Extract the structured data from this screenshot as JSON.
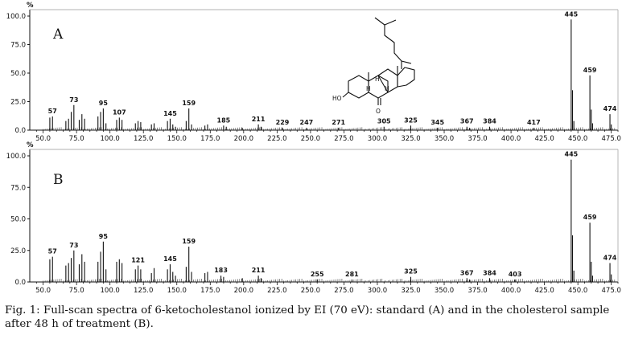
{
  "chart_data": [
    {
      "type": "bar",
      "panel": "A",
      "y_unit": "%",
      "x_ticks": [
        "50.0",
        "75.0",
        "100.0",
        "125.0",
        "150.0",
        "175.0",
        "200.0",
        "225.0",
        "250.0",
        "275.0",
        "300.0",
        "325.0",
        "350.0",
        "375.0",
        "400.0",
        "425.0",
        "450.0",
        "475.0"
      ],
      "y_ticks": [
        "0.0",
        "25.0",
        "50.0",
        "75.0",
        "100.0"
      ],
      "xlim": [
        40,
        480
      ],
      "ylim": [
        0,
        100
      ],
      "peak_labels": [
        "57",
        "73",
        "95",
        "107",
        "145",
        "159",
        "185",
        "211",
        "229",
        "247",
        "271",
        "305",
        "325",
        "345",
        "367",
        "384",
        "417",
        "445",
        "459",
        "474"
      ],
      "peaks": [
        [
          55,
          11
        ],
        [
          57,
          12
        ],
        [
          67,
          8
        ],
        [
          69,
          10
        ],
        [
          71,
          16
        ],
        [
          73,
          22
        ],
        [
          77,
          9
        ],
        [
          79,
          14
        ],
        [
          81,
          10
        ],
        [
          91,
          12
        ],
        [
          93,
          16
        ],
        [
          95,
          19
        ],
        [
          97,
          6
        ],
        [
          105,
          9
        ],
        [
          107,
          11
        ],
        [
          109,
          9
        ],
        [
          119,
          6
        ],
        [
          121,
          8
        ],
        [
          123,
          7
        ],
        [
          131,
          5
        ],
        [
          133,
          6
        ],
        [
          143,
          8
        ],
        [
          145,
          10
        ],
        [
          147,
          5
        ],
        [
          149,
          3
        ],
        [
          157,
          8
        ],
        [
          159,
          19
        ],
        [
          161,
          5
        ],
        [
          171,
          4
        ],
        [
          173,
          5
        ],
        [
          185,
          4
        ],
        [
          187,
          3
        ],
        [
          199,
          2
        ],
        [
          211,
          5
        ],
        [
          213,
          3
        ],
        [
          229,
          2
        ],
        [
          247,
          2
        ],
        [
          271,
          2
        ],
        [
          305,
          3
        ],
        [
          325,
          4
        ],
        [
          345,
          2
        ],
        [
          367,
          3
        ],
        [
          369,
          2
        ],
        [
          384,
          3
        ],
        [
          417,
          2
        ],
        [
          445,
          97
        ],
        [
          446,
          35
        ],
        [
          447,
          8
        ],
        [
          459,
          48
        ],
        [
          460,
          18
        ],
        [
          461,
          6
        ],
        [
          474,
          14
        ],
        [
          475,
          5
        ]
      ]
    },
    {
      "type": "bar",
      "panel": "B",
      "y_unit": "%",
      "x_ticks": [
        "50.0",
        "75.0",
        "100.0",
        "125.0",
        "150.0",
        "175.0",
        "200.0",
        "225.0",
        "250.0",
        "275.0",
        "300.0",
        "325.0",
        "350.0",
        "375.0",
        "400.0",
        "425.0",
        "450.0",
        "475.0"
      ],
      "y_ticks": [
        "0.0",
        "25.0",
        "50.0",
        "75.0",
        "100.0"
      ],
      "xlim": [
        40,
        480
      ],
      "ylim": [
        0,
        100
      ],
      "peak_labels": [
        "57",
        "73",
        "95",
        "121",
        "145",
        "159",
        "183",
        "211",
        "255",
        "281",
        "325",
        "367",
        "384",
        "403",
        "445",
        "459",
        "474"
      ],
      "peaks": [
        [
          55,
          18
        ],
        [
          57,
          20
        ],
        [
          67,
          13
        ],
        [
          69,
          15
        ],
        [
          71,
          19
        ],
        [
          73,
          25
        ],
        [
          77,
          14
        ],
        [
          79,
          22
        ],
        [
          81,
          16
        ],
        [
          91,
          16
        ],
        [
          93,
          24
        ],
        [
          95,
          32
        ],
        [
          97,
          10
        ],
        [
          105,
          16
        ],
        [
          107,
          18
        ],
        [
          109,
          15
        ],
        [
          119,
          10
        ],
        [
          121,
          13
        ],
        [
          123,
          10
        ],
        [
          131,
          7
        ],
        [
          133,
          11
        ],
        [
          143,
          10
        ],
        [
          145,
          14
        ],
        [
          147,
          8
        ],
        [
          149,
          5
        ],
        [
          157,
          12
        ],
        [
          159,
          28
        ],
        [
          161,
          8
        ],
        [
          171,
          7
        ],
        [
          173,
          8
        ],
        [
          183,
          5
        ],
        [
          185,
          4
        ],
        [
          199,
          3
        ],
        [
          211,
          5
        ],
        [
          213,
          3
        ],
        [
          255,
          2
        ],
        [
          281,
          2
        ],
        [
          325,
          4
        ],
        [
          367,
          3
        ],
        [
          369,
          2
        ],
        [
          384,
          3
        ],
        [
          403,
          2
        ],
        [
          445,
          97
        ],
        [
          446,
          37
        ],
        [
          447,
          9
        ],
        [
          459,
          47
        ],
        [
          460,
          16
        ],
        [
          461,
          5
        ],
        [
          474,
          15
        ],
        [
          475,
          6
        ]
      ]
    }
  ],
  "structure": {
    "oh_label": "HO",
    "ketone_label": "O",
    "h_labels": [
      "H",
      "H",
      "H"
    ]
  },
  "caption": "Fig. 1: Full-scan spectra of 6-ketocholestanol ionized by EI (70 eV): standard (A) and in the cholesterol sample after 48 h of treatment (B)."
}
